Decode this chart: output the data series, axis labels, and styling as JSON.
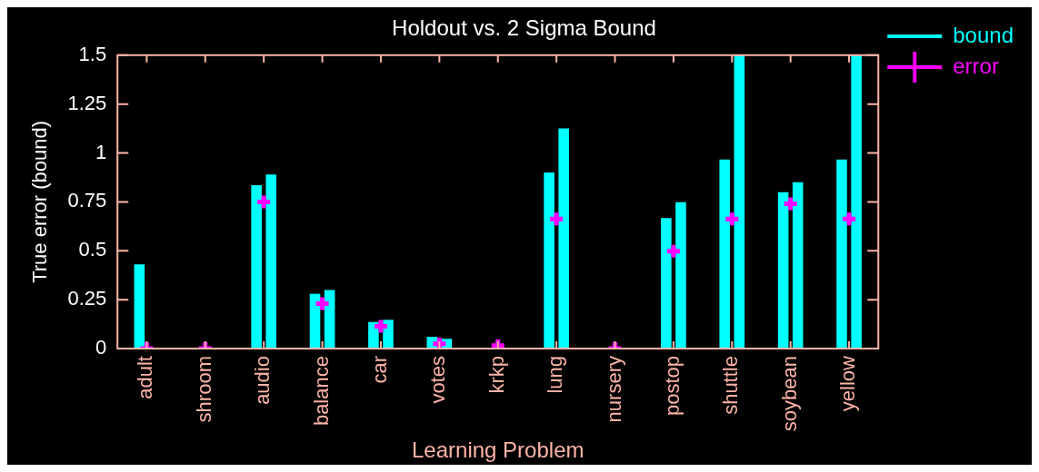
{
  "chart_data": {
    "type": "bar",
    "title": "Holdout vs. 2 Sigma Bound",
    "xlabel": "Learning Problem",
    "ylabel": "True error (bound)",
    "categories": [
      "adult",
      "shroom",
      "audio",
      "balance",
      "car",
      "votes",
      "krkp",
      "lung",
      "nursery",
      "postop",
      "shuttle",
      "soybean",
      "yellow"
    ],
    "series": [
      {
        "name": "bound",
        "color": "#00ffff",
        "values": [
          0.43,
          0,
          0.835,
          0.28,
          0.136,
          0.06,
          null,
          0.9,
          0,
          0.667,
          0.966,
          0.8,
          0.966
        ]
      },
      {
        "color": "#00ffff",
        "values": [
          0,
          0,
          0.89,
          0.3,
          0.147,
          0.05,
          null,
          1.125,
          0,
          0.748,
          1.5,
          0.85,
          1.5
        ]
      },
      {
        "name": "error",
        "type": "scatter",
        "color": "#ff00ff",
        "marker": "cross",
        "x": [
          "adult",
          "shroom",
          "audio",
          "balance",
          "car",
          "votes",
          "krkp",
          "lung",
          "nursery",
          "postop",
          "shuttle",
          "soybean",
          "yellow"
        ],
        "values": [
          0,
          0,
          0.75,
          0.23,
          0.114,
          0.025,
          0.015,
          0.663,
          0,
          0.498,
          0.663,
          0.74,
          0.663
        ]
      }
    ],
    "ylim": [
      0,
      1.5
    ],
    "yticks": [
      0,
      0.25,
      0.5,
      0.75,
      1,
      1.25,
      1.5
    ],
    "legend": "top right"
  }
}
